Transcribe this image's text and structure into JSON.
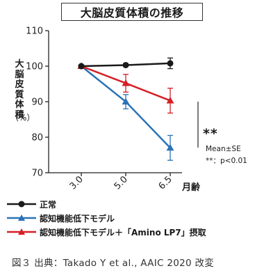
{
  "figure": {
    "title": "大脳皮質体積の推移",
    "ylabel": "大脳皮質体積",
    "yunit": "（%）",
    "xunit": "月齢",
    "significance": "**",
    "stat_note_1": "Mean±SE",
    "stat_note_2": "**：p<0.01",
    "caption": "図３ 出典：Takado Y et al., AAIC 2020 改変"
  },
  "chart_data": {
    "type": "line",
    "title": "大脳皮質体積の推移",
    "xlabel": "月齢",
    "ylabel": "大脳皮質体積（%）",
    "categories": [
      "3.0",
      "5.0",
      "6.5"
    ],
    "ylim": [
      70,
      110
    ],
    "yticks": [
      70,
      80,
      90,
      100,
      110
    ],
    "grid": false,
    "legend_position": "bottom-left",
    "series": [
      {
        "name": "正常",
        "color": "#1a1a1a",
        "marker": "circle",
        "values": [
          100,
          100.3,
          100.8
        ],
        "errors": [
          0,
          0.4,
          1.5
        ]
      },
      {
        "name": "認知機能低下モデル",
        "color": "#2a73b8",
        "marker": "triangle",
        "values": [
          100,
          90,
          77
        ],
        "errors": [
          0,
          2,
          3.5
        ]
      },
      {
        "name": "認知機能低下モデル＋「Amino LP7」摂取",
        "color": "#d61f26",
        "marker": "triangle",
        "values": [
          100,
          95.2,
          90.3
        ],
        "errors": [
          0,
          2.5,
          3.5
        ]
      }
    ]
  }
}
